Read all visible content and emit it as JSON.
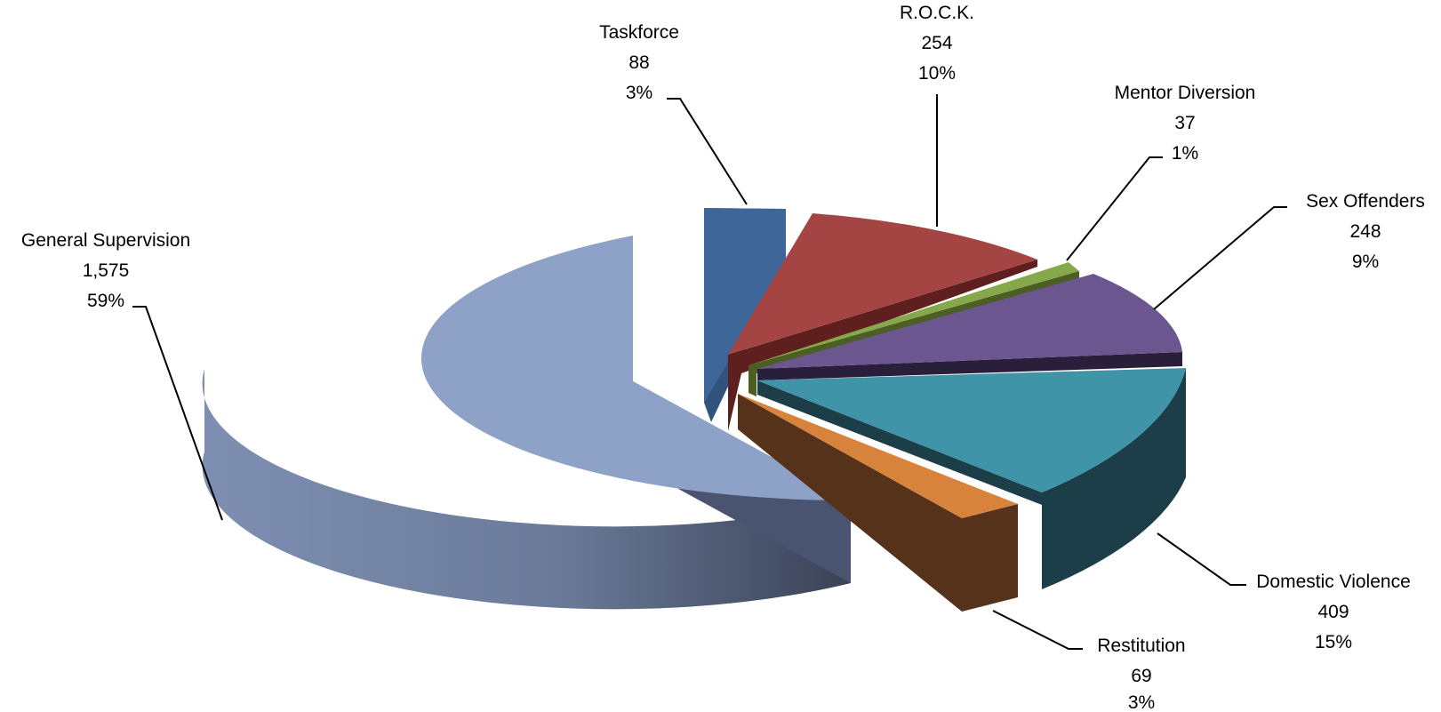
{
  "chart_data": {
    "type": "pie",
    "title": "",
    "style": "3d-exploded",
    "slices": [
      {
        "name": "General Supervision",
        "value": 1575,
        "value_label": "1,575",
        "percent_label": "59%",
        "color": "#8EA2C8"
      },
      {
        "name": "Taskforce",
        "value": 88,
        "value_label": "88",
        "percent_label": "3%",
        "color": "#4A72A8"
      },
      {
        "name": "R.O.C.K.",
        "value": 254,
        "value_label": "254",
        "percent_label": "10%",
        "color": "#A54543"
      },
      {
        "name": "Mentor Diversion",
        "value": 37,
        "value_label": "37",
        "percent_label": "1%",
        "color": "#86A84A"
      },
      {
        "name": "Sex Offenders",
        "value": 248,
        "value_label": "248",
        "percent_label": "9%",
        "color": "#6C5690"
      },
      {
        "name": "Domestic Violence",
        "value": 409,
        "value_label": "409",
        "percent_label": "15%",
        "color": "#4094A8"
      },
      {
        "name": "Restitution",
        "value": 69,
        "value_label": "69",
        "percent_label": "3%",
        "color": "#D8833B"
      }
    ]
  }
}
